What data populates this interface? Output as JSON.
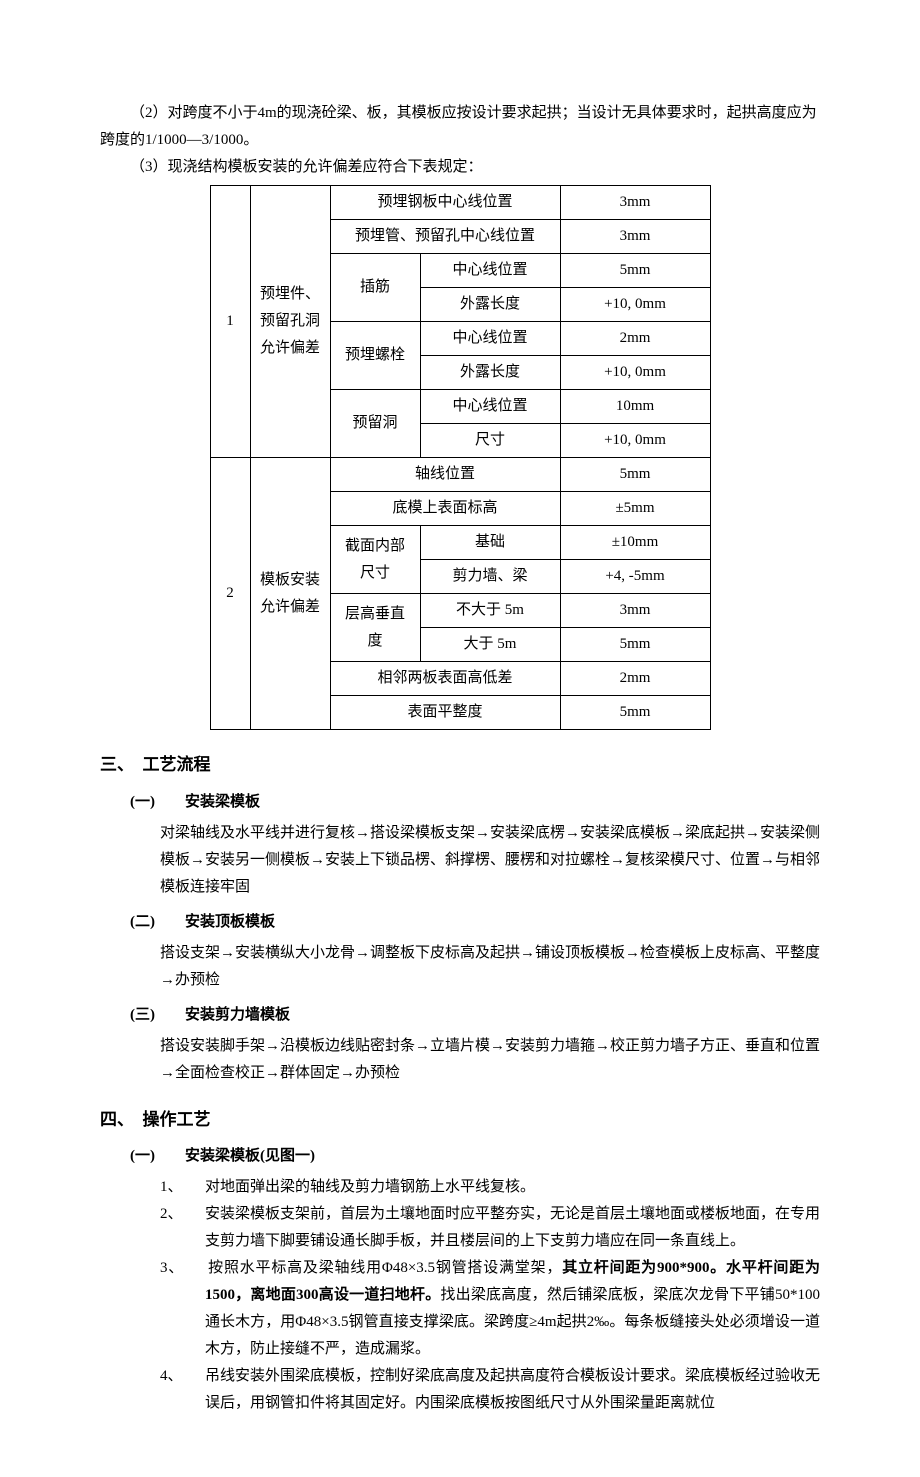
{
  "top": {
    "p2": "（2）对跨度不小于4m的现浇砼梁、板，其模板应按设计要求起拱；当设计无具体要求时，起拱高度应为跨度的1/1000—3/1000。",
    "p3": "（3）现浇结构模板安装的允许偏差应符合下表规定："
  },
  "table": {
    "r1": {
      "idx": "1",
      "cat": "预埋件、预留孔洞允许偏差",
      "a": "预埋钢板中心线位置",
      "v": "3mm"
    },
    "r2": {
      "a": "预埋管、预留孔中心线位置",
      "v": "3mm"
    },
    "r3": {
      "a": "插筋",
      "b": "中心线位置",
      "v": "5mm"
    },
    "r4": {
      "b": "外露长度",
      "v": "+10, 0mm"
    },
    "r5": {
      "a": "预埋螺栓",
      "b": "中心线位置",
      "v": "2mm"
    },
    "r6": {
      "b": "外露长度",
      "v": "+10, 0mm"
    },
    "r7": {
      "a": "预留洞",
      "b": "中心线位置",
      "v": "10mm"
    },
    "r8": {
      "b": "尺寸",
      "v": "+10, 0mm"
    },
    "r9": {
      "idx": "2",
      "cat": "模板安装允许偏差",
      "a": "轴线位置",
      "v": "5mm"
    },
    "r10": {
      "a": "底模上表面标高",
      "v": "±5mm"
    },
    "r11": {
      "a": "截面内部尺寸",
      "b": "基础",
      "v": "±10mm"
    },
    "r12": {
      "b": "剪力墙、梁",
      "v": "+4, -5mm"
    },
    "r13": {
      "a": "层高垂直度",
      "b": "不大于 5m",
      "v": "3mm"
    },
    "r14": {
      "b": "大于 5m",
      "v": "5mm"
    },
    "r15": {
      "a": "相邻两板表面高低差",
      "v": "2mm"
    },
    "r16": {
      "a": "表面平整度",
      "v": "5mm"
    }
  },
  "sec3": {
    "title": "三、　工艺流程",
    "s1_title": "(一)　　安装梁模板",
    "s1_body": "对梁轴线及水平线并进行复核→搭设梁模板支架→安装梁底楞→安装梁底模板→梁底起拱→安装梁侧模板→安装另一侧模板→安装上下锁品楞、斜撑楞、腰楞和对拉螺栓→复核梁模尺寸、位置→与相邻模板连接牢固",
    "s2_title": "(二)　　安装顶板模板",
    "s2_body": "搭设支架→安装横纵大小龙骨→调整板下皮标高及起拱→铺设顶板模板→检查模板上皮标高、平整度→办预检",
    "s3_title": "(三)　　安装剪力墙模板",
    "s3_body": "搭设安装脚手架→沿模板边线贴密封条→立墙片模→安装剪力墙箍→校正剪力墙子方正、垂直和位置→全面检查校正→群体固定→办预检"
  },
  "sec4": {
    "title": "四、　操作工艺",
    "s1_title": "(一)　　安装梁模板(见图一)",
    "i1": "1、　　对地面弹出梁的轴线及剪力墙钢筋上水平线复核。",
    "i2": "2、　　安装梁模板支架前，首层为土壤地面时应平整夯实，无论是首层土壤地面或楼板地面，在专用支剪力墙下脚要铺设通长脚手板，并且楼层间的上下支剪力墙应在同一条直线上。",
    "i3a": "3、　　按照水平标高及梁轴线用Φ48×3.5钢管搭设满堂架，",
    "i3b": "其立杆间距为900*900。水平杆间距为1500，离地面300高设一道扫地杆。",
    "i3c": "找出梁底高度，然后铺梁底板，梁底次龙骨下平铺50*100通长木方，用Φ48×3.5钢管直接支撑梁底。梁跨度≥4m起拱2‰。每条板缝接头处必须增设一道木方，防止接缝不严，造成漏浆。",
    "i4": "4、　　吊线安装外围梁底模板，控制好梁底高度及起拱高度符合模板设计要求。梁底模板经过验收无误后，用钢管扣件将其固定好。内围梁底模板按图纸尺寸从外围梁量距离就位"
  }
}
